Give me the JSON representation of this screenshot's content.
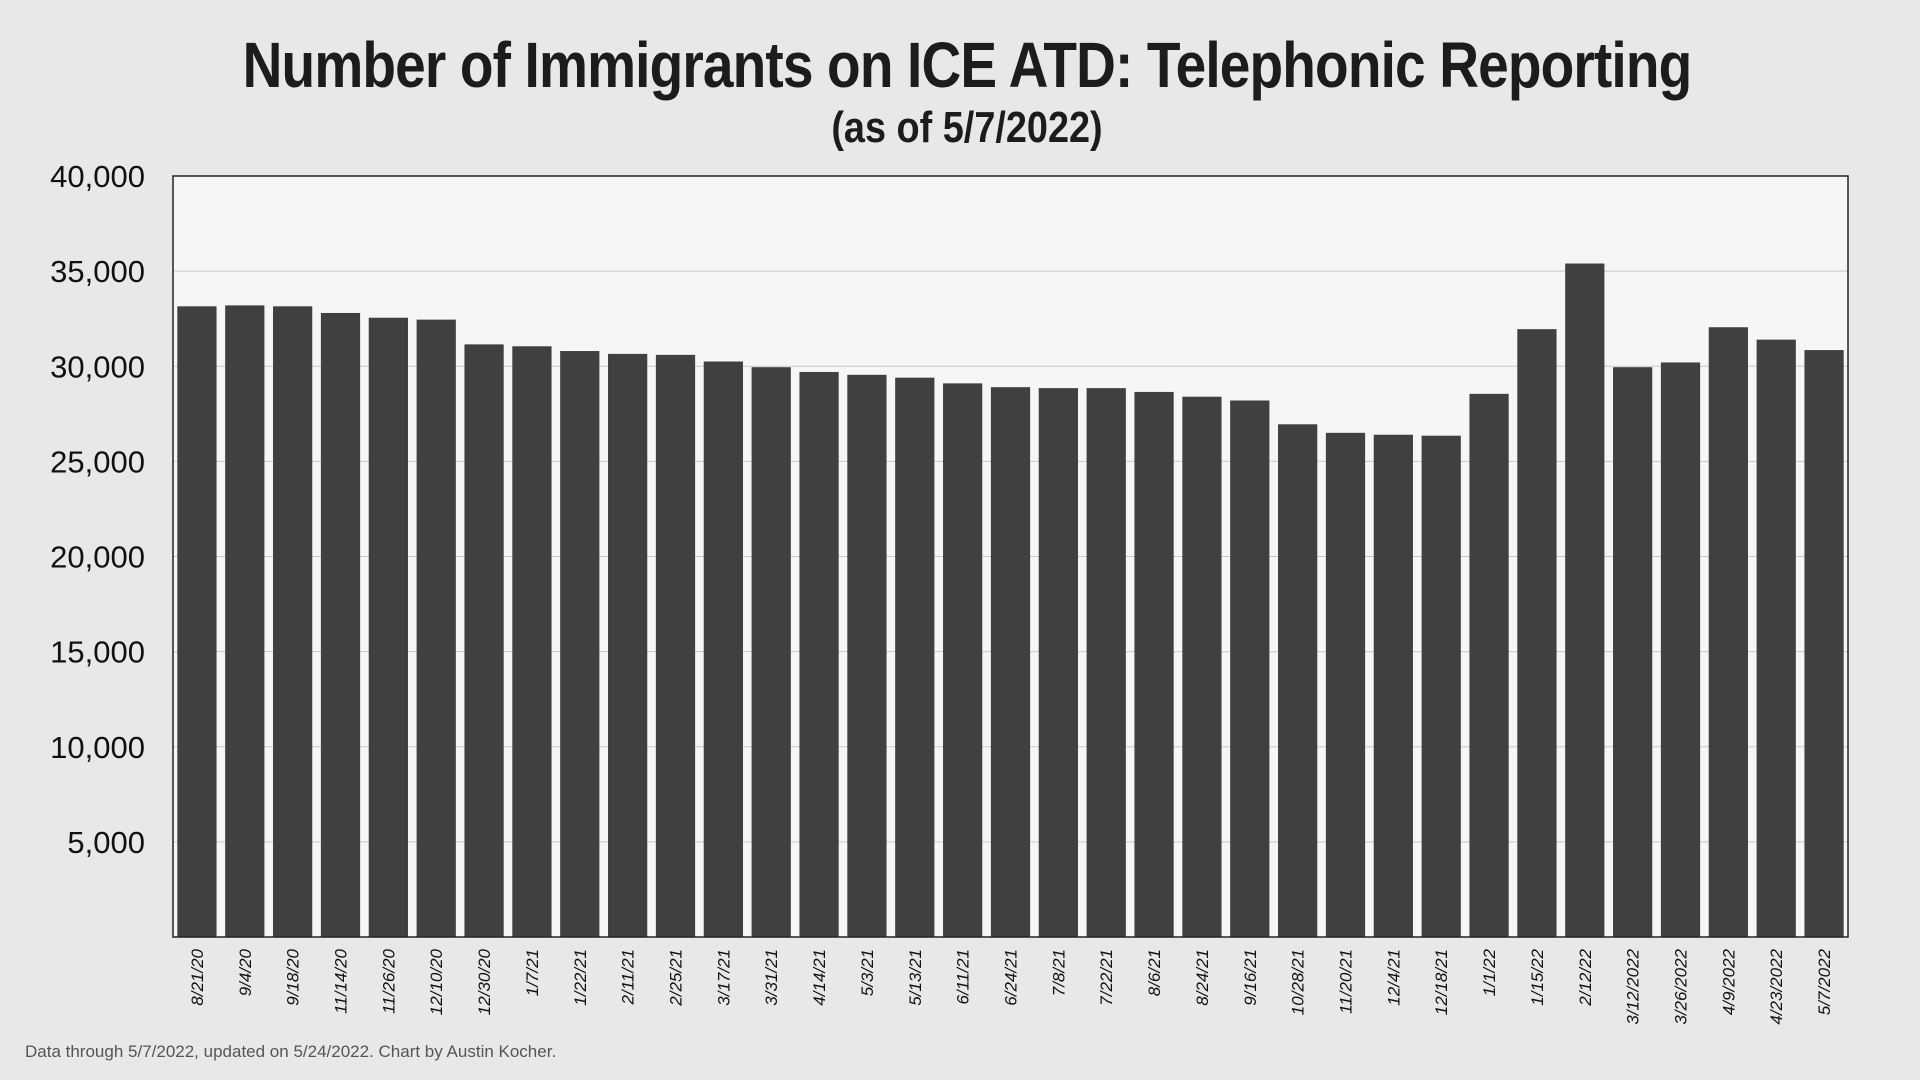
{
  "title": "Number of Immigrants on ICE ATD: Telephonic Reporting",
  "subtitle": "(as of 5/7/2022)",
  "footer": "Data through 5/7/2022, updated on 5/24/2022. Chart by Austin Kocher.",
  "colors": {
    "bar": "#404040",
    "plot_bg": "#f6f7f5",
    "page_bg": "#e8e9e6",
    "grid": "#c8c8c8",
    "text": "#1c1c1c"
  },
  "chart_data": {
    "type": "bar",
    "title": "Number of Immigrants on ICE ATD: Telephonic Reporting",
    "subtitle": "(as of 5/7/2022)",
    "xlabel": "",
    "ylabel": "",
    "ylim": [
      0,
      40000
    ],
    "yticks": [
      5000,
      10000,
      15000,
      20000,
      25000,
      30000,
      35000,
      40000
    ],
    "ytick_labels": [
      "5,000",
      "10,000",
      "15,000",
      "20,000",
      "25,000",
      "30,000",
      "35,000",
      "40,000"
    ],
    "grid": true,
    "categories": [
      "8/21/20",
      "9/4/20",
      "9/18/20",
      "11/14/20",
      "11/26/20",
      "12/10/20",
      "12/30/20",
      "1/7/21",
      "1/22/21",
      "2/11/21",
      "2/25/21",
      "3/17/21",
      "3/31/21",
      "4/14/21",
      "5/3/21",
      "5/13/21",
      "6/11/21",
      "6/24/21",
      "7/8/21",
      "7/22/21",
      "8/6/21",
      "8/24/21",
      "9/16/21",
      "10/28/21",
      "11/20/21",
      "12/4/21",
      "12/18/21",
      "1/1/22",
      "1/15/22",
      "2/12/22",
      "3/12/2022",
      "3/26/2022",
      "4/9/2022",
      "4/23/2022",
      "5/7/2022"
    ],
    "values": [
      33150,
      33200,
      33150,
      32800,
      32550,
      32450,
      31150,
      31050,
      30800,
      30650,
      30600,
      30250,
      29950,
      29700,
      29550,
      29400,
      29100,
      28900,
      28850,
      28850,
      28650,
      28400,
      28200,
      26950,
      26500,
      26400,
      26350,
      28550,
      31950,
      35400,
      29950,
      30200,
      32050,
      31400,
      30850
    ]
  }
}
